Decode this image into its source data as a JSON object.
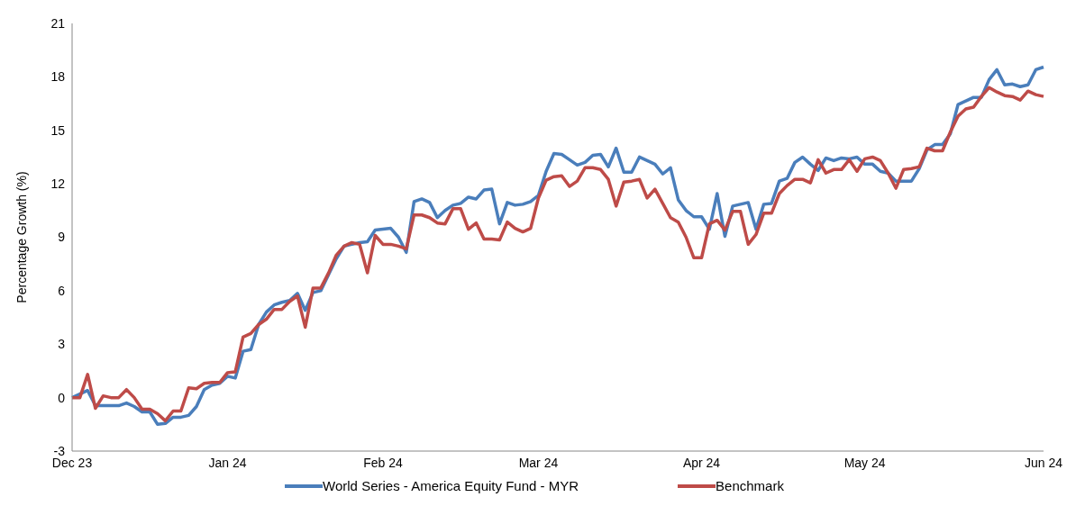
{
  "chart_data": {
    "type": "line",
    "ylabel": "Percentage Growth (%)",
    "categories": [
      "Dec 23",
      null,
      null,
      null,
      null,
      null,
      null,
      null,
      null,
      null,
      null,
      null,
      null,
      null,
      null,
      null,
      null,
      null,
      null,
      null,
      "Jan 24",
      null,
      null,
      null,
      null,
      null,
      null,
      null,
      null,
      null,
      null,
      null,
      null,
      null,
      null,
      null,
      null,
      null,
      null,
      null,
      "Feb 24",
      null,
      null,
      null,
      null,
      null,
      null,
      null,
      null,
      null,
      null,
      null,
      null,
      null,
      null,
      null,
      null,
      null,
      null,
      null,
      "Mar 24",
      null,
      null,
      null,
      null,
      null,
      null,
      null,
      null,
      null,
      null,
      null,
      null,
      null,
      null,
      null,
      null,
      null,
      null,
      null,
      null,
      "Apr 24",
      null,
      null,
      null,
      null,
      null,
      null,
      null,
      null,
      null,
      null,
      null,
      null,
      null,
      null,
      null,
      null,
      null,
      null,
      null,
      null,
      "May 24",
      null,
      null,
      null,
      null,
      null,
      null,
      null,
      null,
      null,
      null,
      null,
      null,
      null,
      null,
      null,
      null,
      null,
      null,
      null,
      null,
      null,
      null,
      "Jun 24"
    ],
    "ylim": [
      -3,
      21
    ],
    "yticks": [
      -3,
      0,
      3,
      6,
      9,
      12,
      15,
      18,
      21
    ],
    "legend": "bottom",
    "marker": "none",
    "line_style": "solid",
    "series": [
      {
        "name": "World Series - America Equity Fund - MYR",
        "color": "#4a7ebb",
        "values": [
          0,
          0.2,
          0.4,
          -0.45,
          -0.45,
          -0.45,
          -0.45,
          -0.3,
          -0.5,
          -0.8,
          -0.8,
          -1.5,
          -1.45,
          -1.1,
          -1.1,
          -1.0,
          -0.5,
          0.45,
          0.7,
          0.8,
          1.2,
          1.1,
          2.6,
          2.7,
          4.1,
          4.8,
          5.2,
          5.35,
          5.45,
          5.85,
          4.9,
          5.9,
          6.0,
          6.9,
          7.8,
          8.5,
          8.6,
          8.7,
          8.75,
          9.4,
          9.45,
          9.5,
          9.0,
          8.15,
          11.0,
          11.15,
          10.95,
          10.1,
          10.5,
          10.8,
          10.9,
          11.25,
          11.15,
          11.65,
          11.7,
          9.75,
          10.95,
          10.8,
          10.85,
          11.0,
          11.35,
          12.7,
          13.7,
          13.65,
          13.35,
          13.05,
          13.2,
          13.6,
          13.65,
          12.95,
          14.0,
          12.65,
          12.65,
          13.5,
          13.3,
          13.1,
          12.55,
          12.9,
          11.1,
          10.5,
          10.15,
          10.15,
          9.45,
          11.45,
          9.05,
          10.75,
          10.85,
          10.95,
          9.45,
          10.85,
          10.9,
          12.15,
          12.3,
          13.2,
          13.5,
          13.1,
          12.75,
          13.45,
          13.3,
          13.45,
          13.4,
          13.5,
          13.1,
          13.1,
          12.7,
          12.6,
          12.15,
          12.15,
          12.15,
          12.85,
          13.9,
          14.2,
          14.2,
          14.8,
          16.45,
          16.65,
          16.85,
          16.85,
          17.85,
          18.4,
          17.55,
          17.6,
          17.45,
          17.55,
          18.4,
          18.55
        ]
      },
      {
        "name": "Benchmark",
        "color": "#be4b48",
        "values": [
          0,
          0,
          1.3,
          -0.6,
          0.1,
          0,
          0,
          0.45,
          0,
          -0.65,
          -0.65,
          -0.9,
          -1.3,
          -0.75,
          -0.75,
          0.55,
          0.5,
          0.8,
          0.85,
          0.85,
          1.4,
          1.45,
          3.4,
          3.6,
          4.1,
          4.4,
          4.95,
          4.95,
          5.4,
          5.7,
          3.95,
          6.15,
          6.15,
          7.0,
          8.0,
          8.5,
          8.7,
          8.6,
          7.0,
          9.1,
          8.6,
          8.6,
          8.5,
          8.35,
          10.25,
          10.25,
          10.1,
          9.8,
          9.75,
          10.6,
          10.6,
          9.45,
          9.8,
          8.9,
          8.9,
          8.85,
          9.85,
          9.5,
          9.3,
          9.5,
          11.2,
          12.2,
          12.4,
          12.45,
          11.85,
          12.15,
          12.9,
          12.9,
          12.8,
          12.25,
          10.75,
          12.1,
          12.15,
          12.25,
          11.2,
          11.7,
          10.9,
          10.1,
          9.85,
          9.0,
          7.85,
          7.85,
          9.75,
          9.95,
          9.4,
          10.45,
          10.45,
          8.6,
          9.15,
          10.35,
          10.35,
          11.45,
          11.9,
          12.25,
          12.25,
          12.05,
          13.35,
          12.6,
          12.8,
          12.8,
          13.35,
          12.7,
          13.4,
          13.5,
          13.3,
          12.6,
          11.75,
          12.8,
          12.85,
          12.95,
          14.0,
          13.85,
          13.85,
          14.9,
          15.8,
          16.2,
          16.3,
          16.9,
          17.4,
          17.15,
          16.95,
          16.9,
          16.7,
          17.2,
          17.0,
          16.9
        ]
      }
    ]
  }
}
